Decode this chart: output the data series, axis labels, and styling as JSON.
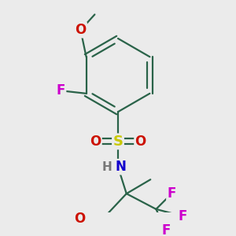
{
  "bg_color": "#ebebeb",
  "bond_color": "#2a6349",
  "bond_width": 1.6,
  "atoms": {
    "S": {
      "color": "#c8c800",
      "size": 13
    },
    "O": {
      "color": "#cc1100",
      "size": 12
    },
    "N": {
      "color": "#1100cc",
      "size": 12
    },
    "F": {
      "color": "#cc00cc",
      "size": 12
    },
    "H": {
      "color": "#777777",
      "size": 11
    },
    "C": {
      "color": "#2a6349",
      "size": 11
    }
  }
}
